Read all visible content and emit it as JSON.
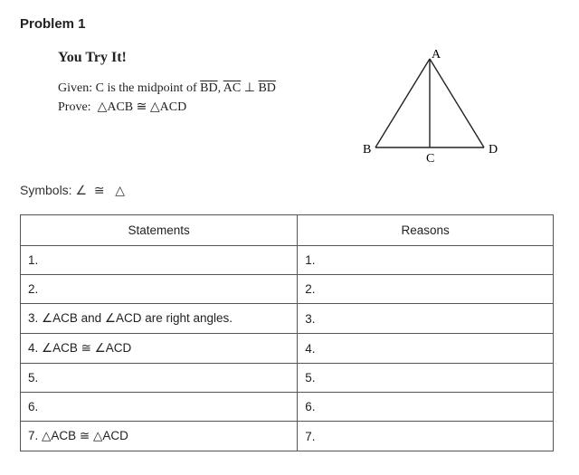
{
  "title": "Problem 1",
  "youTry": "You Try It!",
  "given": {
    "label": "Given:",
    "text1": "C is the midpoint of ",
    "seg1": "BD",
    "text2": ", ",
    "seg2": "AC",
    "perp": " ⊥ ",
    "seg3": "BD"
  },
  "prove": {
    "label": "Prove:",
    "tri1": "△ACB",
    "cong": " ≅ ",
    "tri2": "△ACD"
  },
  "symbols": {
    "label": "Symbols:",
    "angle": "∠",
    "cong": "≅",
    "tri": "△"
  },
  "diagram": {
    "A": "A",
    "B": "B",
    "C": "C",
    "D": "D",
    "lineColor": "#222",
    "labelFont": "14px 'Times New Roman', serif"
  },
  "headers": {
    "stmt": "Statements",
    "rsn": "Reasons"
  },
  "rows": [
    {
      "n": "1.",
      "stmt": "",
      "rsn": ""
    },
    {
      "n": "2.",
      "stmt": "",
      "rsn": ""
    },
    {
      "n": "3.",
      "stmt": "∠ACB and ∠ACD are right angles.",
      "rsn": ""
    },
    {
      "n": "4.",
      "stmt": "∠ACB ≅ ∠ACD",
      "rsn": ""
    },
    {
      "n": "5.",
      "stmt": "",
      "rsn": ""
    },
    {
      "n": "6.",
      "stmt": "",
      "rsn": ""
    },
    {
      "n": "7.",
      "stmt": "△ACB ≅ △ACD",
      "rsn": ""
    }
  ]
}
